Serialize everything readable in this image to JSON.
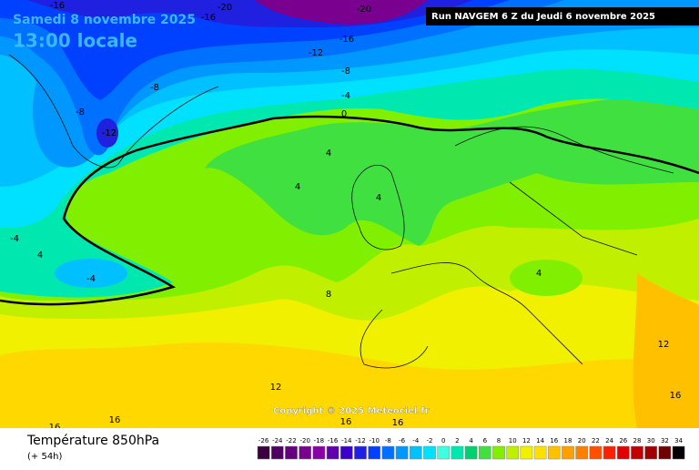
{
  "header": {
    "date": "Samedi 8 novembre 2025",
    "time": "13:00 locale",
    "run": "Run NAVGEM 6 Z du Jeudi 6 novembre 2025"
  },
  "copyright": "Copyright © 2025 Meteociel.fr",
  "legend": {
    "title": "Température 850hPa",
    "lead": "(+ 54h)",
    "ticks": [
      -26,
      -24,
      -22,
      -20,
      -18,
      -16,
      -14,
      -12,
      -10,
      -8,
      -6,
      -4,
      -2,
      0,
      2,
      4,
      6,
      8,
      10,
      12,
      14,
      16,
      18,
      20,
      22,
      24,
      26,
      28,
      30,
      32,
      34
    ],
    "colors": [
      "#3a0040",
      "#500060",
      "#640080",
      "#7a0090",
      "#8a00a8",
      "#6000b0",
      "#3c00c8",
      "#2020e0",
      "#0040ff",
      "#0070ff",
      "#0098ff",
      "#00c0ff",
      "#00e0ff",
      "#40ffe0",
      "#00e8b0",
      "#00d070",
      "#40e040",
      "#80f000",
      "#c0f000",
      "#f0f000",
      "#ffe000",
      "#ffc000",
      "#ffa000",
      "#ff8000",
      "#ff5000",
      "#ff2000",
      "#e00000",
      "#c00000",
      "#a00000",
      "#700000",
      "#000000"
    ]
  },
  "contour_labels": [
    -16,
    -16,
    -20,
    -20,
    -16,
    -12,
    -8,
    -8,
    -8,
    -12,
    -4,
    0,
    4,
    4,
    4,
    -4,
    4,
    -4,
    8,
    4,
    12,
    12,
    16,
    16,
    16,
    16,
    16
  ]
}
